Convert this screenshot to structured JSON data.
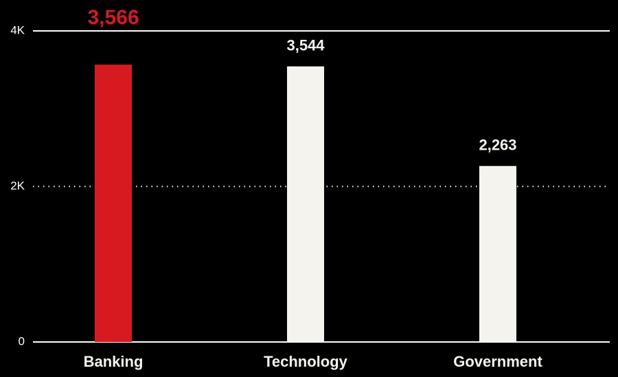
{
  "chart_data": {
    "type": "bar",
    "categories": [
      "Banking",
      "Technology",
      "Government"
    ],
    "values": [
      3566,
      3544,
      2263
    ],
    "value_labels": [
      "3,566",
      "3,544",
      "2,263"
    ],
    "color": "#f5f3ee",
    "highlight": "Banking",
    "highlight_color": "#d71920",
    "ylim": [
      0,
      4000
    ],
    "yticks": [
      0,
      {
        "value": 2000,
        "label": "2K"
      },
      {
        "value": 4000,
        "label": "4K"
      }
    ],
    "grid": true
  }
}
